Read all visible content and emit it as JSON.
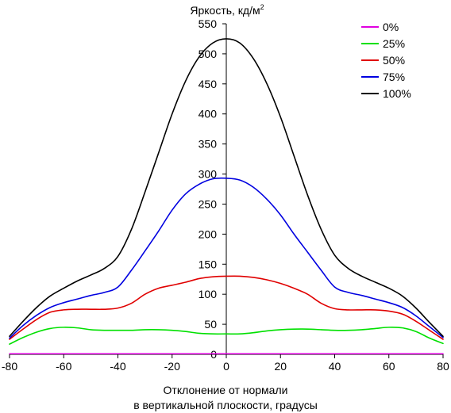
{
  "chart_data": {
    "type": "line",
    "title": "",
    "ylabel": "Яркость, кд/м",
    "ylabel_sup": "2",
    "xlabel_line1": "Отклонение от нормали",
    "xlabel_line2": "в вертикальной плоскости, градусы",
    "xlim": [
      -80,
      80
    ],
    "ylim": [
      0,
      550
    ],
    "x_ticks": [
      -80,
      -60,
      -40,
      -20,
      0,
      20,
      40,
      60,
      80
    ],
    "y_ticks": [
      0,
      50,
      100,
      150,
      200,
      250,
      300,
      350,
      400,
      450,
      500,
      550
    ],
    "grid": false,
    "legend_position": "top-right",
    "x": [
      -80,
      -75,
      -70,
      -65,
      -60,
      -55,
      -50,
      -45,
      -40,
      -35,
      -30,
      -25,
      -20,
      -15,
      -10,
      -5,
      0,
      5,
      10,
      15,
      20,
      25,
      30,
      35,
      40,
      45,
      50,
      55,
      60,
      65,
      70,
      75,
      80
    ],
    "series": [
      {
        "name": "0%",
        "color": "#e000e0",
        "values": [
          1,
          1,
          1,
          1,
          1,
          1,
          1,
          1,
          1,
          1,
          1,
          1,
          1,
          1,
          1,
          1,
          1,
          1,
          1,
          1,
          1,
          1,
          1,
          1,
          1,
          1,
          1,
          1,
          1,
          1,
          1,
          1,
          1
        ]
      },
      {
        "name": "25%",
        "color": "#00e000",
        "values": [
          17,
          28,
          37,
          43,
          45,
          44,
          41,
          40,
          40,
          40,
          41,
          41,
          40,
          38,
          35,
          34,
          34,
          34,
          36,
          39,
          41,
          42,
          42,
          41,
          40,
          40,
          41,
          43,
          45,
          44,
          38,
          27,
          18
        ]
      },
      {
        "name": "50%",
        "color": "#e00000",
        "values": [
          25,
          42,
          58,
          70,
          74,
          75,
          75,
          75,
          77,
          85,
          100,
          110,
          115,
          120,
          126,
          129,
          130,
          130,
          128,
          124,
          118,
          110,
          100,
          85,
          76,
          74,
          74,
          74,
          72,
          67,
          55,
          40,
          25
        ]
      },
      {
        "name": "75%",
        "color": "#0000e0",
        "values": [
          27,
          48,
          65,
          78,
          86,
          92,
          98,
          103,
          112,
          140,
          172,
          205,
          240,
          267,
          283,
          292,
          293,
          290,
          278,
          258,
          232,
          200,
          170,
          140,
          112,
          103,
          98,
          92,
          86,
          78,
          64,
          46,
          28
        ]
      },
      {
        "name": "100%",
        "color": "#000000",
        "values": [
          30,
          55,
          78,
          97,
          110,
          122,
          132,
          143,
          163,
          208,
          270,
          335,
          400,
          455,
          495,
          518,
          525,
          518,
          492,
          450,
          395,
          330,
          265,
          208,
          165,
          143,
          130,
          120,
          110,
          97,
          77,
          53,
          30
        ]
      }
    ]
  }
}
